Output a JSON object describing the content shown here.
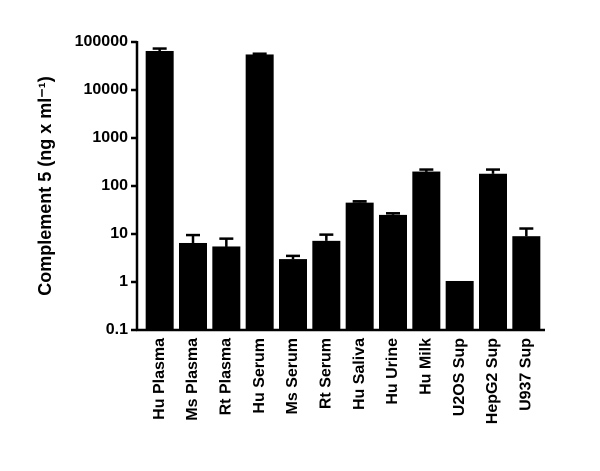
{
  "chart_data": {
    "type": "bar",
    "y_label": "Complement 5 (ng x ml⁻¹)",
    "categories": [
      "Hu Plasma",
      "Ms Plasma",
      "Rt Plasma",
      "Hu Serum",
      "Ms Serum",
      "Rt Serum",
      "Hu Saliva",
      "Hu Urine",
      "Hu Milk",
      "U2OS Sup",
      "HepG2 Sup",
      "U937 Sup"
    ],
    "values": [
      65000,
      6.5,
      5.5,
      55000,
      3,
      7.2,
      45,
      25,
      200,
      1.05,
      180,
      9
    ],
    "errors": [
      8000,
      3,
      2.5,
      2000,
      0.5,
      2.5,
      3,
      2,
      20,
      null,
      40,
      4
    ],
    "color": "#000000",
    "log_scale": true,
    "ylim": [
      0.1,
      100000
    ],
    "yticks": [
      0.1,
      1,
      10,
      100,
      1000,
      10000,
      100000
    ]
  }
}
